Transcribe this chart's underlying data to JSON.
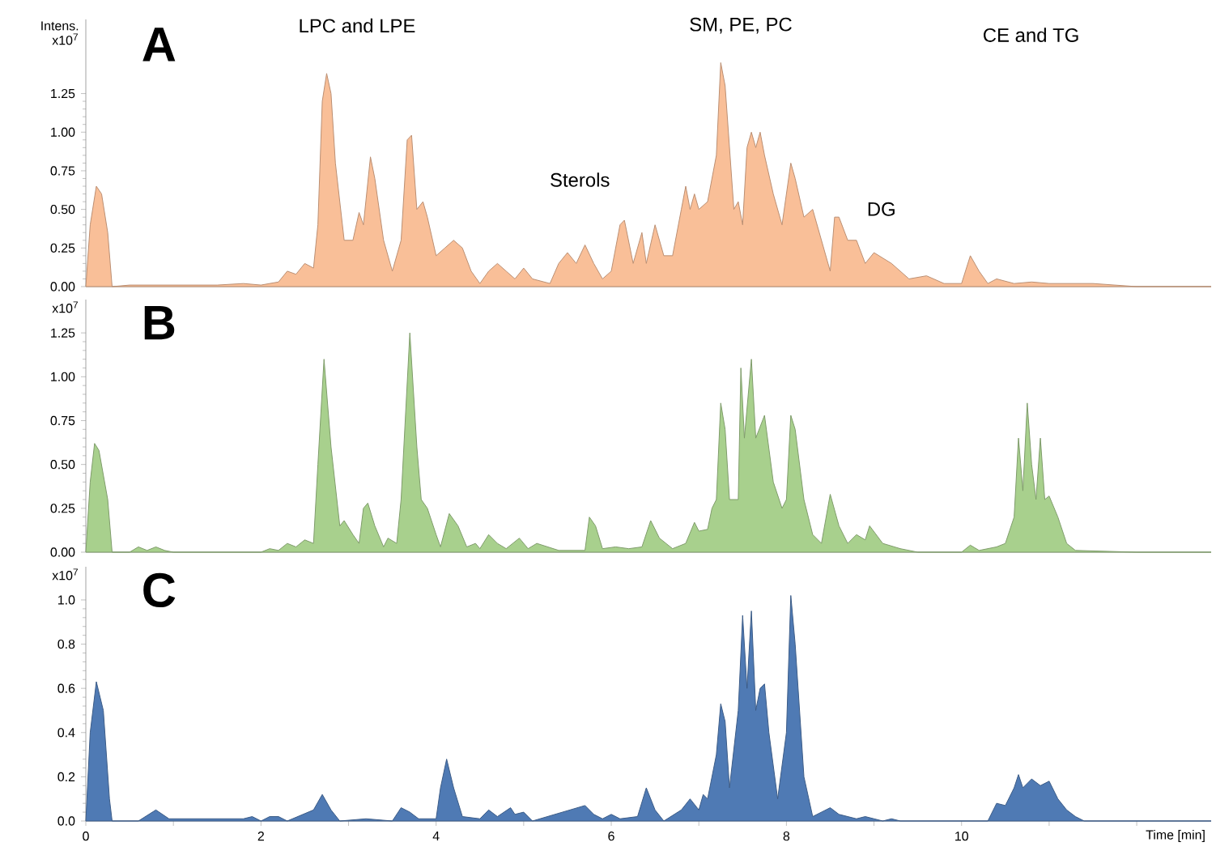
{
  "chart_data": [
    {
      "type": "area",
      "title": "A",
      "ylabel": "Intens. x10$^{7}$",
      "color": "#f9bf98",
      "tick_labels": "y",
      "xlim": [
        0,
        12.85
      ],
      "ylim": [
        0,
        1.73
      ],
      "yticks": [
        {
          "value": 0,
          "label": "0.00"
        },
        0.25,
        {
          "value": 0.5,
          "label": "0.50"
        },
        0.75,
        {
          "value": 1,
          "label": "1.00"
        },
        1.25
      ],
      "annotations": [
        "LPC and LPE",
        "SM, PE, PC",
        "CE and TG",
        "Sterols",
        "DG"
      ],
      "x": [
        0,
        0.05,
        0.12,
        0.18,
        0.25,
        0.3,
        0.5,
        1.0,
        1.5,
        1.8,
        2.0,
        2.2,
        2.3,
        2.4,
        2.5,
        2.6,
        2.65,
        2.7,
        2.75,
        2.8,
        2.85,
        2.95,
        3.05,
        3.12,
        3.17,
        3.25,
        3.3,
        3.4,
        3.5,
        3.6,
        3.67,
        3.72,
        3.78,
        3.85,
        3.9,
        4.0,
        4.1,
        4.2,
        4.3,
        4.4,
        4.5,
        4.6,
        4.7,
        4.8,
        4.9,
        5.0,
        5.1,
        5.3,
        5.4,
        5.5,
        5.6,
        5.7,
        5.8,
        5.9,
        6.0,
        6.1,
        6.15,
        6.25,
        6.35,
        6.4,
        6.5,
        6.6,
        6.7,
        6.8,
        6.85,
        6.9,
        6.95,
        7.0,
        7.1,
        7.2,
        7.25,
        7.3,
        7.4,
        7.45,
        7.5,
        7.55,
        7.6,
        7.65,
        7.7,
        7.75,
        7.85,
        7.95,
        8.05,
        8.1,
        8.2,
        8.3,
        8.4,
        8.5,
        8.55,
        8.6,
        8.7,
        8.8,
        8.9,
        9.0,
        9.2,
        9.4,
        9.6,
        9.8,
        10.0,
        10.1,
        10.2,
        10.3,
        10.4,
        10.6,
        10.8,
        11.0,
        11.5,
        12.0,
        12.85
      ],
      "values": [
        0,
        0.4,
        0.65,
        0.6,
        0.35,
        0,
        0.01,
        0.01,
        0.01,
        0.02,
        0.01,
        0.03,
        0.1,
        0.08,
        0.15,
        0.12,
        0.4,
        1.2,
        1.38,
        1.25,
        0.8,
        0.3,
        0.3,
        0.48,
        0.4,
        0.84,
        0.7,
        0.3,
        0.1,
        0.3,
        0.95,
        0.98,
        0.5,
        0.55,
        0.45,
        0.2,
        0.25,
        0.3,
        0.25,
        0.1,
        0.02,
        0.1,
        0.15,
        0.1,
        0.05,
        0.12,
        0.05,
        0.02,
        0.15,
        0.22,
        0.15,
        0.27,
        0.15,
        0.05,
        0.1,
        0.4,
        0.43,
        0.15,
        0.35,
        0.15,
        0.4,
        0.2,
        0.2,
        0.5,
        0.65,
        0.5,
        0.6,
        0.5,
        0.55,
        0.85,
        1.45,
        1.3,
        0.5,
        0.55,
        0.4,
        0.9,
        1.0,
        0.9,
        1.0,
        0.85,
        0.6,
        0.4,
        0.8,
        0.7,
        0.45,
        0.5,
        0.3,
        0.1,
        0.45,
        0.45,
        0.3,
        0.3,
        0.15,
        0.22,
        0.15,
        0.05,
        0.07,
        0.02,
        0.02,
        0.2,
        0.1,
        0.02,
        0.05,
        0.02,
        0.03,
        0.02,
        0.02,
        0,
        0
      ]
    },
    {
      "type": "area",
      "title": "B",
      "ylabel": "x10$^{7}$",
      "color": "#a8d08d",
      "tick_labels": "y",
      "xlim": [
        0,
        12.85
      ],
      "ylim": [
        0,
        1.44
      ],
      "yticks": [
        {
          "value": 0,
          "label": "0.00"
        },
        0.25,
        {
          "value": 0.5,
          "label": "0.50"
        },
        0.75,
        {
          "value": 1,
          "label": "1.00"
        },
        1.25
      ],
      "x": [
        0,
        0.05,
        0.1,
        0.15,
        0.25,
        0.3,
        0.5,
        0.6,
        0.7,
        0.8,
        0.9,
        1.0,
        1.5,
        2.0,
        2.1,
        2.2,
        2.3,
        2.4,
        2.5,
        2.6,
        2.65,
        2.72,
        2.8,
        2.9,
        2.95,
        3.05,
        3.12,
        3.17,
        3.22,
        3.3,
        3.4,
        3.45,
        3.55,
        3.6,
        3.7,
        3.78,
        3.83,
        3.9,
        4.0,
        4.05,
        4.15,
        4.25,
        4.35,
        4.45,
        4.5,
        4.6,
        4.7,
        4.8,
        4.95,
        5.05,
        5.15,
        5.4,
        5.7,
        5.75,
        5.82,
        5.9,
        6.05,
        6.2,
        6.35,
        6.45,
        6.55,
        6.7,
        6.85,
        6.95,
        7.0,
        7.1,
        7.15,
        7.2,
        7.25,
        7.3,
        7.35,
        7.45,
        7.48,
        7.52,
        7.6,
        7.65,
        7.75,
        7.85,
        7.95,
        8.0,
        8.05,
        8.1,
        8.2,
        8.3,
        8.4,
        8.5,
        8.6,
        8.7,
        8.8,
        8.9,
        8.95,
        9.1,
        9.3,
        9.5,
        10.0,
        10.1,
        10.2,
        10.4,
        10.5,
        10.6,
        10.65,
        10.7,
        10.75,
        10.8,
        10.85,
        10.9,
        10.95,
        11.0,
        11.1,
        11.2,
        11.3,
        12.0,
        12.85
      ],
      "values": [
        0,
        0.4,
        0.62,
        0.58,
        0.3,
        0,
        0,
        0.03,
        0.01,
        0.03,
        0.01,
        0,
        0,
        0,
        0.02,
        0.01,
        0.05,
        0.03,
        0.07,
        0.05,
        0.5,
        1.1,
        0.6,
        0.15,
        0.18,
        0.1,
        0.05,
        0.25,
        0.28,
        0.15,
        0.03,
        0.08,
        0.05,
        0.3,
        1.25,
        0.6,
        0.3,
        0.25,
        0.1,
        0.03,
        0.22,
        0.15,
        0.03,
        0.05,
        0.02,
        0.1,
        0.05,
        0.02,
        0.08,
        0.02,
        0.05,
        0.01,
        0.01,
        0.2,
        0.15,
        0.02,
        0.03,
        0.02,
        0.03,
        0.18,
        0.08,
        0.02,
        0.05,
        0.17,
        0.12,
        0.13,
        0.25,
        0.3,
        0.85,
        0.7,
        0.3,
        0.3,
        1.05,
        0.65,
        1.1,
        0.65,
        0.78,
        0.4,
        0.25,
        0.3,
        0.78,
        0.7,
        0.3,
        0.1,
        0.05,
        0.33,
        0.15,
        0.05,
        0.1,
        0.07,
        0.15,
        0.05,
        0.02,
        0,
        0,
        0.04,
        0.01,
        0.03,
        0.05,
        0.2,
        0.65,
        0.35,
        0.85,
        0.5,
        0.3,
        0.65,
        0.3,
        0.32,
        0.2,
        0.05,
        0.01,
        0,
        0
      ]
    },
    {
      "type": "area",
      "title": "C",
      "ylabel": "x10$^{7}$",
      "xlabel": "Time [min]",
      "color": "#4f7ab4",
      "xlim": [
        0,
        12.85
      ],
      "ylim": [
        0,
        1.15
      ],
      "xticks": [
        0,
        {
          "value": 1,
          "label": null
        },
        2,
        {
          "value": 3,
          "label": null
        },
        4,
        {
          "value": 5,
          "label": null
        },
        6,
        {
          "value": 7,
          "label": null
        },
        8,
        {
          "value": 9,
          "label": null
        },
        10,
        {
          "value": 11,
          "label": null
        },
        {
          "value": 12,
          "label": null
        }
      ],
      "yticks": [
        {
          "value": 0,
          "label": "0.0"
        },
        0.2,
        0.4,
        0.6,
        0.8,
        {
          "value": 1,
          "label": "1.0"
        }
      ],
      "x": [
        0,
        0.05,
        0.12,
        0.2,
        0.27,
        0.3,
        0.6,
        0.8,
        0.95,
        1.8,
        1.9,
        2.0,
        2.1,
        2.2,
        2.3,
        2.6,
        2.7,
        2.8,
        2.9,
        3.2,
        3.5,
        3.6,
        3.7,
        3.8,
        4.0,
        4.05,
        4.12,
        4.2,
        4.3,
        4.5,
        4.6,
        4.7,
        4.85,
        4.9,
        5.0,
        5.1,
        5.7,
        5.8,
        5.9,
        6.0,
        6.1,
        6.3,
        6.4,
        6.5,
        6.6,
        6.8,
        6.9,
        7.0,
        7.05,
        7.1,
        7.2,
        7.25,
        7.3,
        7.35,
        7.45,
        7.5,
        7.55,
        7.6,
        7.65,
        7.7,
        7.75,
        7.8,
        7.9,
        8.0,
        8.05,
        8.1,
        8.2,
        8.3,
        8.5,
        8.6,
        8.8,
        8.9,
        9.0,
        9.1,
        9.2,
        9.3,
        10.3,
        10.4,
        10.5,
        10.6,
        10.65,
        10.7,
        10.8,
        10.9,
        11.0,
        11.1,
        11.2,
        11.3,
        11.4,
        12.85
      ],
      "values": [
        0,
        0.4,
        0.63,
        0.5,
        0.1,
        0,
        0,
        0.05,
        0.01,
        0.01,
        0.02,
        0,
        0.02,
        0.02,
        0,
        0.05,
        0.12,
        0.05,
        0,
        0.01,
        0,
        0.06,
        0.04,
        0.01,
        0.01,
        0.15,
        0.28,
        0.15,
        0.02,
        0.01,
        0.05,
        0.02,
        0.06,
        0.03,
        0.04,
        0,
        0.07,
        0.03,
        0.01,
        0.03,
        0.01,
        0.02,
        0.15,
        0.05,
        0,
        0.05,
        0.1,
        0.05,
        0.12,
        0.1,
        0.3,
        0.53,
        0.45,
        0.15,
        0.5,
        0.93,
        0.6,
        0.95,
        0.5,
        0.6,
        0.62,
        0.4,
        0.1,
        0.4,
        1.02,
        0.8,
        0.2,
        0.02,
        0.06,
        0.03,
        0.01,
        0.02,
        0.01,
        0,
        0.01,
        0,
        0,
        0.08,
        0.07,
        0.15,
        0.21,
        0.15,
        0.19,
        0.16,
        0.18,
        0.1,
        0.05,
        0.02,
        0,
        0
      ]
    }
  ]
}
